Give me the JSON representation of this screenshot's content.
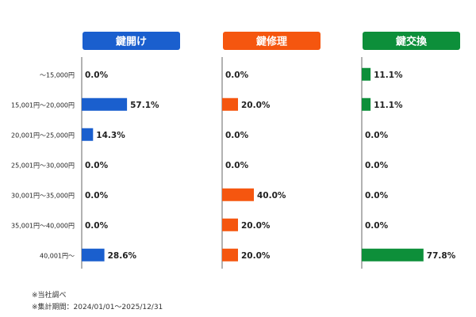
{
  "chart_data": {
    "type": "bar",
    "orientation": "horizontal",
    "categories": [
      "～15,000円",
      "15,001円～20,000円",
      "20,001円～25,000円",
      "25,001円～30,000円",
      "30,001円～35,000円",
      "35,001円～40,000円",
      "40,001円～"
    ],
    "series": [
      {
        "name": "鍵開け",
        "color": "#1a5fce",
        "values": [
          0.0,
          57.1,
          14.3,
          0.0,
          0.0,
          0.0,
          28.6
        ]
      },
      {
        "name": "鍵修理",
        "color": "#f5560f",
        "values": [
          0.0,
          20.0,
          0.0,
          0.0,
          40.0,
          20.0,
          20.0
        ]
      },
      {
        "name": "鍵交換",
        "color": "#0d8f3a",
        "values": [
          11.1,
          11.1,
          0.0,
          0.0,
          0.0,
          0.0,
          77.8
        ]
      }
    ],
    "value_suffix": "%",
    "xlim": [
      0,
      100
    ],
    "grid": false,
    "layout": "three side-by-side panels sharing category rows"
  },
  "notes": [
    "※当社調べ",
    "※集計期間：2024/01/01～2025/12/31"
  ]
}
